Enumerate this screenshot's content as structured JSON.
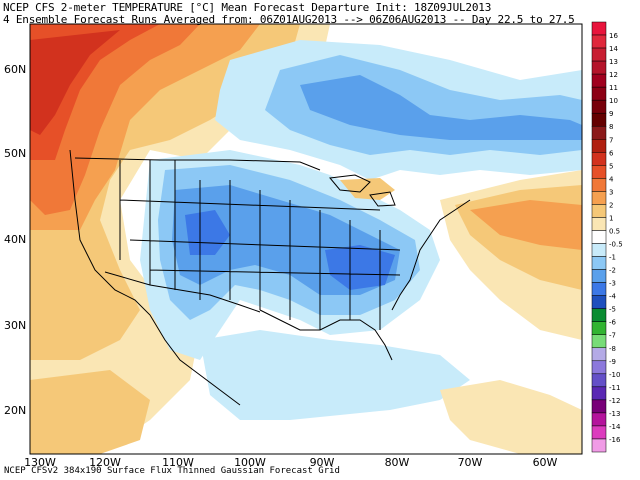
{
  "header": {
    "line1": "NCEP CFS 2-meter TEMPERATURE [°C] Mean Forecast Departure Init: 18Z09JUL2013",
    "line2": "4 Ensemble Forecast Runs Averaged from: 06Z01AUG2013 --> 06Z06AUG2013 -- Day 22.5 to 27.5"
  },
  "footer": "NCEP CFSv2 384x190 Surface Flux Thinned Gaussian Forecast Grid",
  "lat_labels": [
    "60N",
    "50N",
    "40N",
    "30N",
    "20N"
  ],
  "lon_labels": [
    "130W",
    "120W",
    "110W",
    "100W",
    "90W",
    "80W",
    "70W",
    "60W"
  ],
  "legend": {
    "labels": [
      "16",
      "14",
      "13",
      "12",
      "11",
      "10",
      "9",
      "8",
      "7",
      "6",
      "5",
      "4",
      "3",
      "2",
      "1",
      "0.5",
      "-0.5",
      "-1",
      "-2",
      "-3",
      "-4",
      "-5",
      "-6",
      "-7",
      "-8",
      "-9",
      "-10",
      "-11",
      "-12",
      "-13",
      "-14",
      "-16"
    ],
    "colors": [
      "#e8143c",
      "#e0283c",
      "#c81e32",
      "#b4142a",
      "#a0001e",
      "#8c0014",
      "#78000a",
      "#640000",
      "#8b1a1a",
      "#b02010",
      "#d2321e",
      "#e65028",
      "#f07838",
      "#f5a050",
      "#f5c878",
      "#fae6b4",
      "#ffffff",
      "#c8ebfa",
      "#8cc8f5",
      "#5aa0eb",
      "#3c78e6",
      "#1e50be",
      "#0a8c32",
      "#32b432",
      "#78dc78",
      "#b4aae6",
      "#8c78dc",
      "#6450c8",
      "#5a28b4",
      "#780078",
      "#b4149c",
      "#dc3cbe",
      "#f09be6"
    ]
  },
  "colors": {
    "warm_strong": "#d2321e",
    "warm_mid": "#f07838",
    "warm_light": "#f5c878",
    "warm_faint": "#fae6b4",
    "cool_faint": "#c8ebfa",
    "cool_light": "#8cc8f5",
    "cool_mid": "#5aa0eb",
    "cool_strong": "#3c78e6",
    "boundary": "#000000"
  }
}
